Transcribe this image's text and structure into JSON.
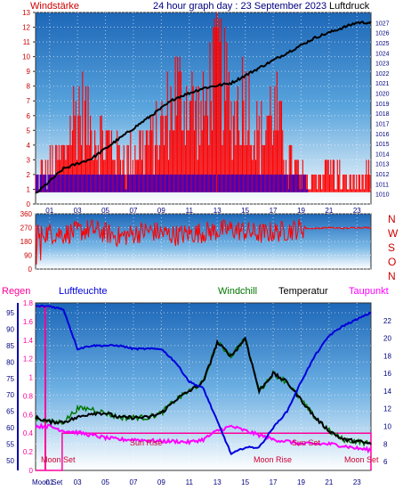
{
  "header": {
    "left_label": "Windstärke",
    "title": "24 hour graph day : 23 September 2023",
    "right_label": "Luftdruck"
  },
  "middle_labels": [
    "N",
    "W",
    "S",
    "O",
    "N"
  ],
  "bottom_header": {
    "regen": "Regen",
    "luftfeuchte": "Luftfeuchte",
    "windchill": "Windchill",
    "temperatur": "Temperatur",
    "taupunkt": "Taupunkt"
  },
  "annotations": {
    "moon_set_1": "Moon Set",
    "sun_rise": "Sun Rise",
    "moon_rise": "Moon Rise",
    "sun_set": "Sun Set",
    "moon_set_2": "Moon Set",
    "moon_set_axis": "Moon Set"
  },
  "colors": {
    "wind_red": "#ff0000",
    "wind_blue": "#0000ff",
    "pressure": "#000000",
    "humidity": "#0000dd",
    "temperature": "#000000",
    "windchill": "#007700",
    "dewpoint": "#ff00ff",
    "rain": "#ff0099",
    "axis_left": "#cc0000",
    "axis_right": "#000080"
  },
  "chart_data": [
    {
      "type": "bar",
      "title": "24 hour graph day : 23 September 2023",
      "series": [
        {
          "name": "Windstärke",
          "x": [
            0,
            1,
            2,
            3,
            4,
            5,
            6,
            7,
            8,
            9,
            10,
            11,
            12,
            13,
            14,
            15,
            16,
            17,
            18,
            19,
            20,
            21,
            22,
            23,
            24
          ],
          "values": [
            2,
            3,
            4,
            8,
            6,
            5,
            4,
            4,
            5,
            6,
            9,
            8,
            7,
            12,
            7,
            9,
            5,
            8,
            4,
            2,
            2,
            3,
            2,
            2,
            2
          ]
        },
        {
          "name": "Luftdruck",
          "x": [
            0,
            2,
            4,
            6,
            8,
            10,
            12,
            14,
            16,
            18,
            20,
            22,
            23,
            24
          ],
          "values": [
            1010,
            1012.5,
            1013.5,
            1015.5,
            1017.5,
            1019.5,
            1020.5,
            1021,
            1022.5,
            1024,
            1025.5,
            1026.5,
            1027,
            1027
          ]
        }
      ],
      "x_ticks": [
        "01",
        "03",
        "05",
        "07",
        "09",
        "11",
        "13",
        "15",
        "17",
        "19",
        "21",
        "23"
      ],
      "ylim_left": [
        0,
        13
      ],
      "y_ticks_left": [
        0,
        1,
        2,
        3,
        4,
        5,
        6,
        7,
        8,
        9,
        10,
        11,
        12,
        13
      ],
      "ylim_right": [
        1009,
        1028
      ],
      "y_ticks_right": [
        1010,
        1011,
        1012,
        1013,
        1014,
        1015,
        1016,
        1017,
        1018,
        1019,
        1020,
        1021,
        1022,
        1023,
        1024,
        1025,
        1026,
        1027
      ]
    },
    {
      "type": "line",
      "series": [
        {
          "name": "Windrichtung",
          "x": [
            0,
            2,
            4,
            6,
            8,
            10,
            12,
            14,
            16,
            18,
            19,
            20,
            21,
            22,
            23,
            24
          ],
          "values": [
            240,
            230,
            260,
            210,
            250,
            220,
            240,
            260,
            230,
            250,
            265,
            265,
            270,
            265,
            270,
            270
          ]
        }
      ],
      "ylim": [
        0,
        360
      ],
      "y_ticks": [
        0,
        90,
        180,
        270,
        360
      ]
    },
    {
      "type": "line",
      "series": [
        {
          "name": "Luftfeuchte",
          "x": [
            0,
            1,
            2,
            3,
            4,
            5,
            6,
            7,
            8,
            9,
            10,
            11,
            12,
            13,
            14,
            15,
            16,
            17,
            18,
            19,
            20,
            21,
            22,
            23,
            24
          ],
          "values": [
            97,
            97,
            96,
            84,
            85,
            85,
            85,
            84,
            84,
            84,
            80,
            74,
            72,
            62,
            52,
            54,
            54,
            60,
            65,
            74,
            82,
            88,
            91,
            93,
            95
          ]
        },
        {
          "name": "Temperatur",
          "x": [
            0,
            1,
            2,
            3,
            4,
            5,
            6,
            7,
            8,
            9,
            10,
            11,
            12,
            13,
            14,
            15,
            16,
            17,
            18,
            19,
            20,
            21,
            22,
            23,
            24
          ],
          "values": [
            11,
            10.5,
            10.5,
            11,
            11.5,
            11.5,
            11,
            11,
            11,
            11.5,
            13,
            14,
            15,
            19.5,
            18,
            20,
            14,
            16,
            15,
            13,
            11,
            9.5,
            8.5,
            8.3,
            8
          ]
        },
        {
          "name": "Windchill",
          "x": [
            0,
            1,
            2,
            3,
            4,
            5,
            6,
            7,
            8,
            9,
            10,
            11,
            12,
            13,
            14,
            15,
            16,
            17,
            18,
            19,
            20,
            21,
            22,
            23,
            24
          ],
          "values": [
            11,
            10.5,
            10.5,
            12,
            12,
            11.5,
            11,
            11,
            11,
            11.5,
            13,
            14,
            15,
            19.5,
            18,
            20,
            14,
            16,
            15,
            13,
            11,
            9.5,
            8.5,
            8.3,
            8
          ]
        },
        {
          "name": "Taupunkt",
          "x": [
            0,
            1,
            2,
            3,
            4,
            5,
            6,
            7,
            8,
            9,
            10,
            11,
            12,
            13,
            14,
            15,
            16,
            17,
            18,
            19,
            20,
            21,
            22,
            23,
            24
          ],
          "values": [
            10,
            10,
            9.5,
            9.3,
            9,
            8.7,
            8.5,
            8.5,
            8.4,
            8.3,
            8.3,
            8.2,
            8.5,
            9.5,
            10.0,
            9.5,
            9.0,
            8.5,
            8.3,
            8,
            8,
            8,
            7.8,
            7.5,
            7.3
          ]
        },
        {
          "name": "Regen",
          "x": [
            0,
            1.9,
            2,
            24
          ],
          "values": [
            0,
            0,
            0.4,
            0.4
          ]
        }
      ],
      "x_ticks": [
        "Moon Set",
        "01",
        "03",
        "05",
        "07",
        "09",
        "11",
        "13",
        "15",
        "17",
        "19",
        "21",
        "23"
      ],
      "ylim_humidity": [
        47,
        98
      ],
      "y_ticks_humidity": [
        50,
        55,
        60,
        65,
        70,
        75,
        80,
        85,
        90,
        95
      ],
      "ylim_rain": [
        0,
        1.8
      ],
      "y_ticks_rain": [
        0,
        0.2,
        0.4,
        0.6,
        0.8,
        1,
        1.2,
        1.4,
        1.6,
        1.8
      ],
      "ylim_temp": [
        5,
        24
      ],
      "y_ticks_temp": [
        6,
        8,
        10,
        12,
        14,
        16,
        18,
        20,
        22
      ]
    }
  ]
}
